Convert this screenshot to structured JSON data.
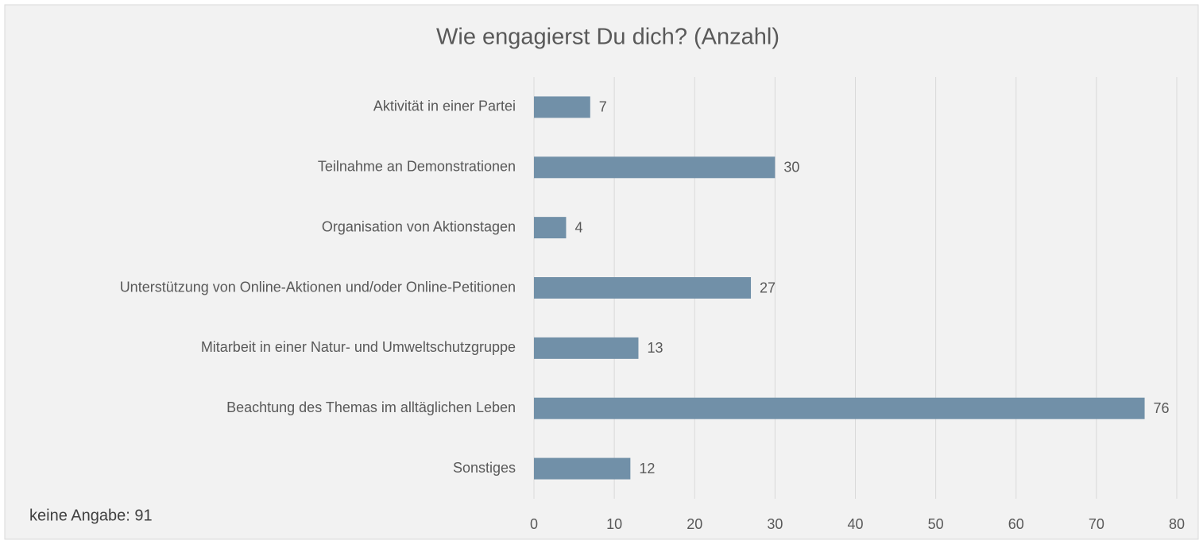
{
  "chart_data": {
    "type": "bar",
    "orientation": "horizontal",
    "title": "Wie engagierst Du dich? (Anzahl)",
    "annotation": "keine Angabe: 91",
    "categories": [
      "Aktivität in einer Partei",
      "Teilnahme an Demonstrationen",
      "Organisation von Aktionstagen",
      "Unterstützung von Online-Aktionen und/oder Online-Petitionen",
      "Mitarbeit in einer Natur- und Umweltschutzgruppe",
      "Beachtung des Themas im alltäglichen Leben",
      "Sonstiges"
    ],
    "values": [
      7,
      30,
      4,
      27,
      13,
      76,
      12
    ],
    "color": "#7190a8",
    "xlim": [
      0,
      80
    ],
    "xticks": [
      0,
      10,
      20,
      30,
      40,
      50,
      60,
      70,
      80
    ],
    "grid": true
  }
}
